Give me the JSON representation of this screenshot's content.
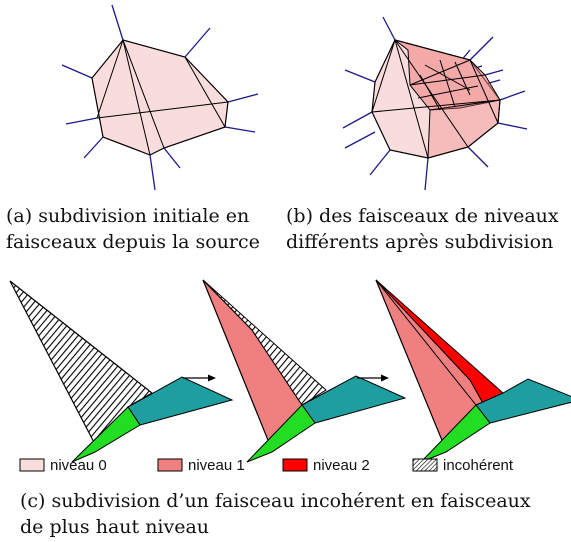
{
  "figure": {
    "captions": {
      "a": [
        "(a) subdivision initiale en",
        "faisceaux depuis la source"
      ],
      "b": [
        "(b) des faisceaux de niveaux",
        "différents après subdivision"
      ],
      "c": [
        "(c) subdivision d’un faisceau incohérent en faisceaux",
        "de plus haut niveau"
      ]
    },
    "legend": {
      "items": [
        {
          "label": "niveau 0",
          "color": "#f9dcdc"
        },
        {
          "label": "niveau 1",
          "color": "#f08080"
        },
        {
          "label": "niveau 2",
          "color": "#ff0000"
        },
        {
          "label": "incohérent",
          "color": "hatch"
        }
      ]
    },
    "colors": {
      "level0": "#f9dcdc",
      "level1": "#f08080",
      "level2": "#ff0000",
      "teal": "#1e9e9e",
      "green": "#22dd22",
      "ray": "#1a1a8c",
      "stroke": "#000000"
    }
  }
}
